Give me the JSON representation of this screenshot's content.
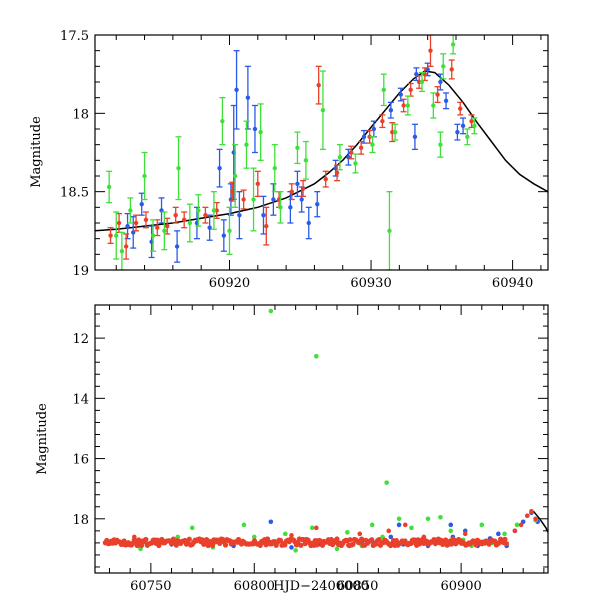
{
  "chart_data": [
    {
      "type": "scatter",
      "panel": "top",
      "title": "",
      "xlabel": "",
      "ylabel": "Magnitude",
      "xlim": [
        60910.5,
        60942.5
      ],
      "ylim": [
        19,
        17.5
      ],
      "y_inverted": true,
      "grid": false,
      "legend": "none",
      "x_ticks": [
        60920,
        60930,
        60940
      ],
      "y_ticks": [
        17.5,
        18,
        18.5,
        19
      ],
      "series": [
        {
          "color": "#2a5ae8",
          "points": [
            [
              60912.8,
              18.72,
              0.08
            ],
            [
              60913.2,
              18.76,
              0.1
            ],
            [
              60913.8,
              18.58,
              0.07
            ],
            [
              60914.5,
              18.82,
              0.1
            ],
            [
              60915.2,
              18.62,
              0.08
            ],
            [
              60916.3,
              18.85,
              0.1
            ],
            [
              60917.7,
              18.7,
              0.1
            ],
            [
              60918.6,
              18.73,
              0.08
            ],
            [
              60919.3,
              18.35,
              0.12
            ],
            [
              60919.6,
              18.78,
              0.1
            ],
            [
              60920.1,
              18.55,
              0.1
            ],
            [
              60920.3,
              18.25,
              0.3
            ],
            [
              60920.5,
              17.85,
              0.25
            ],
            [
              60920.7,
              18.65,
              0.15
            ],
            [
              60921.3,
              17.9,
              0.2
            ],
            [
              60921.8,
              18.1,
              0.15
            ],
            [
              60922.4,
              18.65,
              0.12
            ],
            [
              60923.1,
              18.55,
              0.1
            ],
            [
              60924.3,
              18.6,
              0.1
            ],
            [
              60925.1,
              18.55,
              0.08
            ],
            [
              60925.6,
              18.7,
              0.1
            ],
            [
              60926.2,
              18.58,
              0.08
            ],
            [
              60927.5,
              18.35,
              0.05
            ],
            [
              60928.4,
              18.28,
              0.05
            ],
            [
              60929.5,
              18.15,
              0.04
            ],
            [
              60930.2,
              18.1,
              0.05
            ],
            [
              60931.4,
              17.98,
              0.05
            ],
            [
              60932.1,
              17.88,
              0.04
            ],
            [
              60933.2,
              17.75,
              0.04
            ],
            [
              60934.0,
              17.72,
              0.04
            ],
            [
              60934.9,
              17.8,
              0.05
            ],
            [
              60935.3,
              17.92,
              0.05
            ],
            [
              60936.1,
              18.12,
              0.05
            ],
            [
              60936.5,
              18.08,
              0.05
            ],
            [
              60933.1,
              18.15,
              0.08
            ],
            [
              60924.8,
              18.45,
              0.08
            ]
          ]
        },
        {
          "color": "#e8402a",
          "points": [
            [
              60911.6,
              18.78,
              0.05
            ],
            [
              60912.2,
              18.7,
              0.06
            ],
            [
              60912.7,
              18.85,
              0.08
            ],
            [
              60913.4,
              18.7,
              0.05
            ],
            [
              60914.1,
              18.68,
              0.05
            ],
            [
              60914.9,
              18.73,
              0.05
            ],
            [
              60915.6,
              18.72,
              0.05
            ],
            [
              60916.2,
              18.65,
              0.05
            ],
            [
              60916.8,
              18.68,
              0.05
            ],
            [
              60918.3,
              18.65,
              0.05
            ],
            [
              60919.1,
              18.62,
              0.05
            ],
            [
              60920.2,
              18.5,
              0.06
            ],
            [
              60921.0,
              18.55,
              0.06
            ],
            [
              60922.0,
              18.45,
              0.08
            ],
            [
              60922.6,
              18.72,
              0.12
            ],
            [
              60923.5,
              18.55,
              0.05
            ],
            [
              60924.4,
              18.5,
              0.05
            ],
            [
              60925.2,
              18.48,
              0.05
            ],
            [
              60926.3,
              17.82,
              0.12
            ],
            [
              60926.8,
              18.42,
              0.05
            ],
            [
              60927.6,
              18.38,
              0.05
            ],
            [
              60928.6,
              18.25,
              0.04
            ],
            [
              60929.3,
              18.22,
              0.04
            ],
            [
              60929.9,
              18.15,
              0.04
            ],
            [
              60930.8,
              18.05,
              0.04
            ],
            [
              60931.5,
              18.12,
              0.06
            ],
            [
              60932.3,
              17.95,
              0.04
            ],
            [
              60932.8,
              17.85,
              0.04
            ],
            [
              60933.4,
              17.8,
              0.04
            ],
            [
              60933.8,
              17.75,
              0.04
            ],
            [
              60934.2,
              17.6,
              0.1
            ],
            [
              60934.7,
              17.88,
              0.05
            ],
            [
              60935.7,
              17.72,
              0.06
            ],
            [
              60936.3,
              17.97,
              0.04
            ],
            [
              60937.1,
              18.05,
              0.04
            ]
          ]
        },
        {
          "color": "#3fe03a",
          "points": [
            [
              60911.5,
              18.47,
              0.1
            ],
            [
              60912.0,
              18.78,
              0.15
            ],
            [
              60912.4,
              18.88,
              0.12
            ],
            [
              60913.0,
              18.62,
              0.08
            ],
            [
              60914.0,
              18.4,
              0.15
            ],
            [
              60914.6,
              18.78,
              0.1
            ],
            [
              60915.4,
              18.75,
              0.12
            ],
            [
              60916.4,
              18.35,
              0.2
            ],
            [
              60917.2,
              18.7,
              0.12
            ],
            [
              60917.8,
              18.62,
              0.1
            ],
            [
              60918.9,
              18.62,
              0.12
            ],
            [
              60919.5,
              18.05,
              0.15
            ],
            [
              60920.0,
              18.75,
              0.15
            ],
            [
              60920.4,
              18.4,
              0.2
            ],
            [
              60921.2,
              18.2,
              0.15
            ],
            [
              60921.7,
              18.55,
              0.2
            ],
            [
              60922.2,
              18.12,
              0.18
            ],
            [
              60923.2,
              18.35,
              0.15
            ],
            [
              60923.6,
              18.6,
              0.1
            ],
            [
              60924.8,
              18.22,
              0.1
            ],
            [
              60925.4,
              18.3,
              0.12
            ],
            [
              60926.6,
              17.98,
              0.25
            ],
            [
              60927.8,
              18.28,
              0.08
            ],
            [
              60928.9,
              18.32,
              0.06
            ],
            [
              60930.1,
              18.2,
              0.05
            ],
            [
              60930.9,
              17.85,
              0.1
            ],
            [
              60931.3,
              18.75,
              0.25
            ],
            [
              60931.7,
              18.12,
              0.05
            ],
            [
              60932.6,
              17.95,
              0.06
            ],
            [
              60933.6,
              17.8,
              0.06
            ],
            [
              60934.4,
              17.95,
              0.08
            ],
            [
              60935.1,
              17.7,
              0.08
            ],
            [
              60935.8,
              17.56,
              0.06
            ],
            [
              60936.8,
              18.15,
              0.05
            ],
            [
              60937.3,
              18.08,
              0.05
            ],
            [
              60934.9,
              18.2,
              0.08
            ]
          ]
        }
      ],
      "model_curve": {
        "color": "#000000",
        "points": [
          [
            60910.5,
            18.75
          ],
          [
            60912,
            18.74
          ],
          [
            60914,
            18.72
          ],
          [
            60916,
            18.7
          ],
          [
            60918,
            18.67
          ],
          [
            60920,
            18.64
          ],
          [
            60922,
            18.6
          ],
          [
            60924,
            18.54
          ],
          [
            60926,
            18.45
          ],
          [
            60927,
            18.38
          ],
          [
            60928,
            18.3
          ],
          [
            60929,
            18.2
          ],
          [
            60930,
            18.09
          ],
          [
            60931,
            17.98
          ],
          [
            60932,
            17.87
          ],
          [
            60933,
            17.78
          ],
          [
            60933.8,
            17.73
          ],
          [
            60934.5,
            17.74
          ],
          [
            60935.5,
            17.82
          ],
          [
            60936.5,
            17.93
          ],
          [
            60937.5,
            18.06
          ],
          [
            60938.5,
            18.18
          ],
          [
            60939.5,
            18.3
          ],
          [
            60940.5,
            18.39
          ],
          [
            60941.5,
            18.45
          ],
          [
            60942.5,
            18.5
          ]
        ]
      }
    },
    {
      "type": "scatter",
      "panel": "bottom",
      "title": "",
      "xlabel": "HJD−2400000",
      "ylabel": "Magnitude",
      "xlim": [
        60723,
        60942
      ],
      "ylim": [
        19.8,
        10.9
      ],
      "y_inverted": true,
      "grid": false,
      "legend": "none",
      "x_ticks": [
        60750,
        60800,
        60850,
        60900
      ],
      "y_ticks": [
        12,
        14,
        16,
        18
      ],
      "series": [
        {
          "color": "#2a5ae8",
          "points": [
            [
              60745,
              18.8
            ],
            [
              60760,
              18.85
            ],
            [
              60775,
              18.75
            ],
            [
              60790,
              18.9
            ],
            [
              60805,
              18.8
            ],
            [
              60812,
              18.7
            ],
            [
              60818,
              18.95
            ],
            [
              60825,
              18.75
            ],
            [
              60832,
              18.85
            ],
            [
              60840,
              18.8
            ],
            [
              60846,
              18.9
            ],
            [
              60852,
              18.75
            ],
            [
              60858,
              18.8
            ],
            [
              60866,
              18.6
            ],
            [
              60872,
              18.85
            ],
            [
              60878,
              18.7
            ],
            [
              60884,
              18.9
            ],
            [
              60890,
              18.7
            ],
            [
              60896,
              18.6
            ],
            [
              60902,
              18.4
            ],
            [
              60908,
              18.9
            ],
            [
              60914,
              18.65
            ],
            [
              60918,
              18.5
            ],
            [
              60922,
              18.9
            ],
            [
              60926,
              18.4
            ],
            [
              60930,
              18.1
            ],
            [
              60934,
              17.8
            ],
            [
              60937,
              18.1
            ],
            [
              60808,
              18.1
            ],
            [
              60870,
              18.2
            ],
            [
              60895,
              18.2
            ]
          ]
        },
        {
          "color": "#3fe03a",
          "points": [
            [
              60808,
              11.1
            ],
            [
              60830,
              12.6
            ],
            [
              60864,
              16.8
            ],
            [
              60763,
              18.6
            ],
            [
              60770,
              18.3
            ],
            [
              60795,
              18.2
            ],
            [
              60815,
              18.5
            ],
            [
              60820,
              19.05
            ],
            [
              60828,
              18.3
            ],
            [
              60845,
              18.45
            ],
            [
              60852,
              18.9
            ],
            [
              60857,
              18.2
            ],
            [
              60862,
              18.6
            ],
            [
              60870,
              18.0
            ],
            [
              60876,
              18.3
            ],
            [
              60884,
              18.0
            ],
            [
              60890,
              17.95
            ],
            [
              60895,
              18.4
            ],
            [
              60901,
              18.7
            ],
            [
              60910,
              18.2
            ],
            [
              60915,
              18.8
            ],
            [
              60921,
              18.5
            ],
            [
              60927,
              18.2
            ],
            [
              60932,
              17.9
            ],
            [
              60936,
              18.05
            ],
            [
              60745,
              19.0
            ],
            [
              60780,
              18.95
            ],
            [
              60800,
              18.6
            ],
            [
              60840,
              19.0
            ],
            [
              60905,
              18.9
            ]
          ]
        },
        {
          "color": "#e8402a",
          "band": [
            60728,
            60922,
            18.78
          ],
          "points": [
            [
              60742,
              18.6
            ],
            [
              60781,
              18.7
            ],
            [
              60818,
              18.55
            ],
            [
              60830,
              18.3
            ],
            [
              60851,
              18.5
            ],
            [
              60865,
              18.4
            ],
            [
              60873,
              18.2
            ],
            [
              60882,
              18.6
            ],
            [
              60902,
              18.5
            ],
            [
              60926,
              18.4
            ],
            [
              60929,
              18.2
            ],
            [
              60932,
              17.9
            ],
            [
              60934,
              17.75
            ],
            [
              60936,
              18.0
            ]
          ]
        }
      ],
      "model_curve": {
        "color": "#000000",
        "points": [
          [
            60935,
            17.75
          ],
          [
            60938,
            18.0
          ],
          [
            60941,
            18.3
          ],
          [
            60942,
            18.45
          ]
        ]
      }
    }
  ]
}
